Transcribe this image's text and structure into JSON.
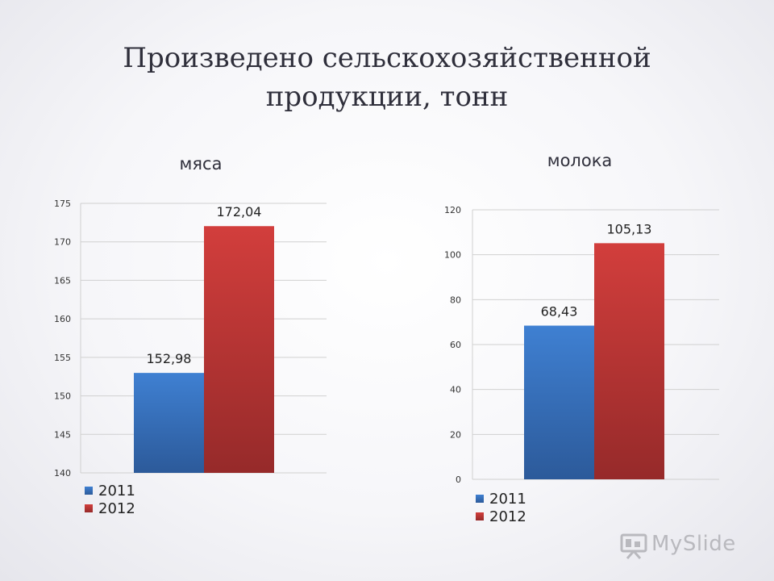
{
  "slide": {
    "title_line1": "Произведено сельскохозяйственной",
    "title_line2": "продукции, тонн"
  },
  "colors": {
    "series_2011": "#3d7bc9",
    "series_2012": "#c9393a",
    "grid": "#d0d0d0",
    "axis_text": "#333333"
  },
  "chart_data": [
    {
      "type": "bar",
      "title": "мяса",
      "categories": [
        ""
      ],
      "series": [
        {
          "name": "2011",
          "values": [
            152.98
          ],
          "label": "152,98"
        },
        {
          "name": "2012",
          "values": [
            172.04
          ],
          "label": "172,04"
        }
      ],
      "ylim": [
        140,
        175
      ],
      "yticks": [
        140,
        145,
        150,
        155,
        160,
        165,
        170,
        175
      ],
      "xlabel": "",
      "ylabel": "",
      "grid": true,
      "legend": "bottom-left"
    },
    {
      "type": "bar",
      "title": "молока",
      "categories": [
        ""
      ],
      "series": [
        {
          "name": "2011",
          "values": [
            68.43
          ],
          "label": "68,43"
        },
        {
          "name": "2012",
          "values": [
            105.13
          ],
          "label": "105,13"
        }
      ],
      "ylim": [
        0,
        120
      ],
      "yticks": [
        0,
        20,
        40,
        60,
        80,
        100,
        120
      ],
      "xlabel": "",
      "ylabel": "",
      "grid": true,
      "legend": "bottom-left"
    }
  ],
  "watermark": {
    "text": "MySlide"
  }
}
